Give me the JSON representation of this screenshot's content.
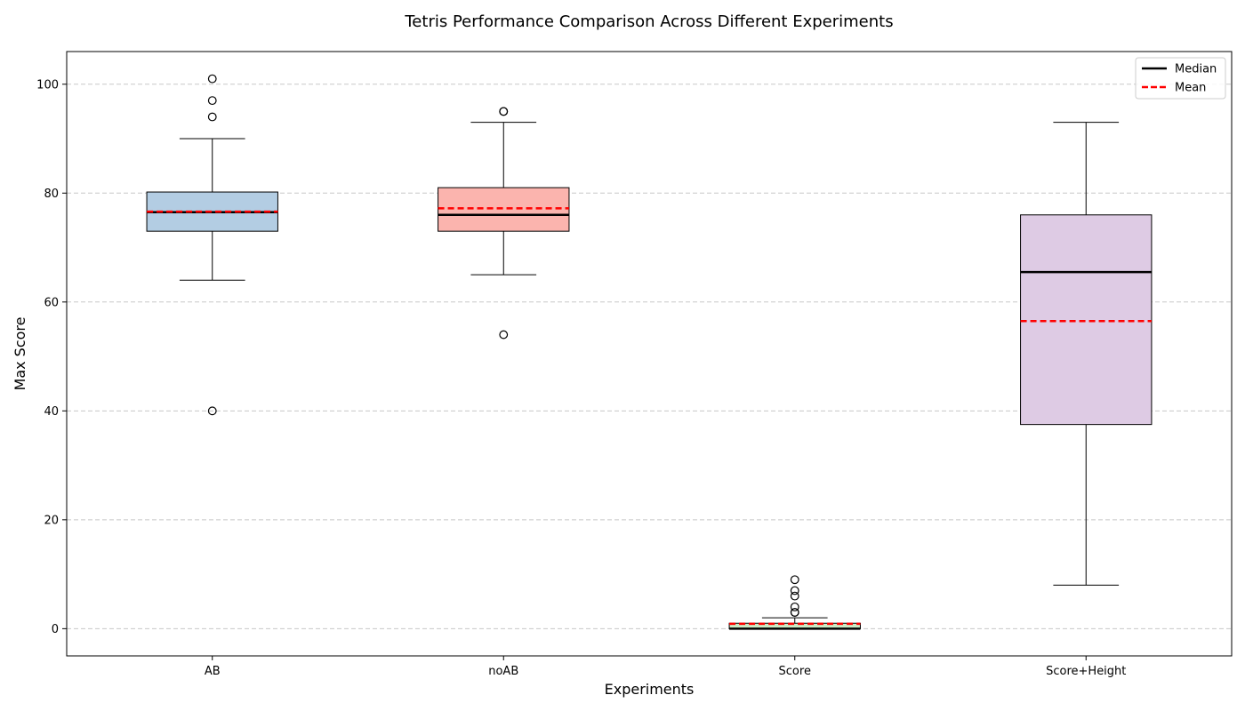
{
  "chart_data": {
    "type": "box",
    "title": "Tetris Performance Comparison Across Different Experiments",
    "xlabel": "Experiments",
    "ylabel": "Max Score",
    "ylim": [
      -5,
      106
    ],
    "yticks": [
      0,
      20,
      40,
      60,
      80,
      100
    ],
    "grid": "horizontal-dashed",
    "legend_position": "top-right",
    "legend": [
      {
        "label": "Median",
        "style": "solid",
        "color": "#000000"
      },
      {
        "label": "Mean",
        "style": "dashed",
        "color": "#ff0000"
      }
    ],
    "categories": [
      "AB",
      "noAB",
      "Score",
      "Score+Height"
    ],
    "boxes": [
      {
        "name": "AB",
        "whisker_low": 64,
        "q1": 73,
        "median": 76.5,
        "mean": 76.6,
        "q3": 80.2,
        "whisker_high": 90,
        "outliers": [
          101,
          97,
          94,
          40
        ],
        "fill": "#b3cde3"
      },
      {
        "name": "noAB",
        "whisker_low": 65,
        "q1": 73,
        "median": 76,
        "mean": 77.2,
        "q3": 81,
        "whisker_high": 93,
        "outliers": [
          95,
          95,
          54
        ],
        "fill": "#fbb4ae"
      },
      {
        "name": "Score",
        "whisker_low": 0,
        "q1": 0,
        "median": 0,
        "mean": 0.9,
        "q3": 1,
        "whisker_high": 2,
        "outliers": [
          9,
          7,
          6,
          4,
          3,
          3
        ],
        "fill": "#ccebc5"
      },
      {
        "name": "Score+Height",
        "whisker_low": 8,
        "q1": 37.5,
        "median": 65.5,
        "mean": 56.5,
        "q3": 76,
        "whisker_high": 93,
        "outliers": [],
        "fill": "#decbe4"
      }
    ]
  }
}
